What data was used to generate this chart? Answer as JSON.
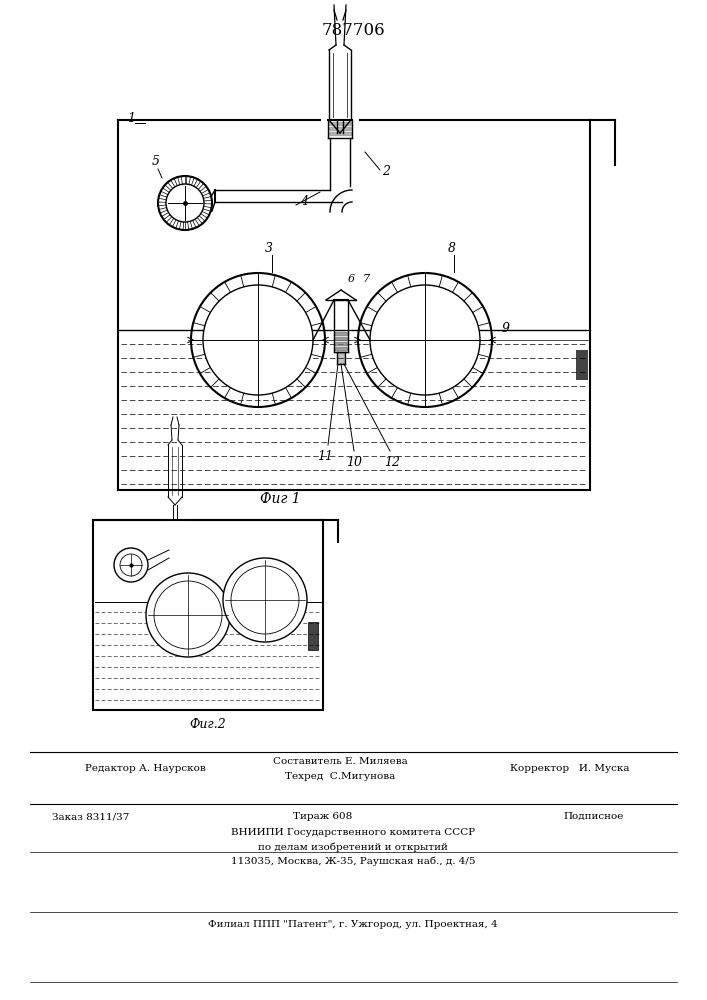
{
  "title": "787706",
  "fig1_label": "Фиг 1",
  "fig2_label": "Фиг.2",
  "bg_color": "#ffffff",
  "line_color": "#000000",
  "footer": {
    "editor": "Редактор А. Наурсков",
    "composer": "Составитель Е. Миляева",
    "techred": "Техред  С.Мигунова",
    "corrector": "Корректор   И. Муска",
    "order": "Заказ 8311/37",
    "tirazh": "Тираж 608",
    "podpisnoe": "Подписное",
    "org1": "ВНИИПИ Государственного комитета СССР",
    "org2": "по делам изобретений и открытий",
    "org3": "113035, Москва, Ж-35, Раушская наб., д. 4/5",
    "filial": "Филиал ППП \"Патент\", г. Ужгород, ул. Проектная, 4"
  }
}
